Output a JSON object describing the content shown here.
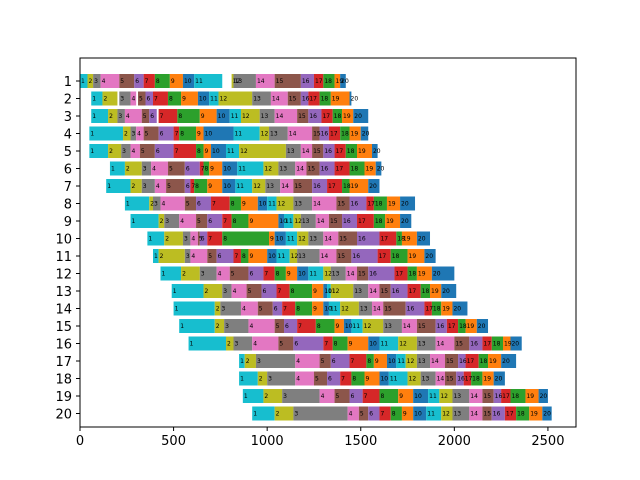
{
  "chart_data": {
    "type": "bar",
    "orientation": "horizontal-stacked",
    "title": "",
    "xlabel": "",
    "ylabel": "",
    "xlim": [
      0,
      2650
    ],
    "xticks": [
      0,
      500,
      1000,
      1500,
      2000,
      2500
    ],
    "categories": [
      "1",
      "2",
      "3",
      "4",
      "5",
      "6",
      "7",
      "8",
      "9",
      "10",
      "11",
      "12",
      "13",
      "14",
      "15",
      "16",
      "17",
      "18",
      "19",
      "20"
    ],
    "y_inverted": true,
    "grid": false,
    "legend": "none",
    "segment_labels": [
      "1",
      "2",
      "3",
      "4",
      "5",
      "6",
      "7",
      "8",
      "9",
      "10",
      "11",
      "12",
      "13",
      "14",
      "15",
      "16",
      "17",
      "18",
      "19",
      "20"
    ],
    "palette": [
      "#17becf",
      "#bcbd22",
      "#7f7f7f",
      "#e377c2",
      "#8c564b",
      "#9467bd",
      "#d62728",
      "#2ca02c",
      "#ff7f0e",
      "#1f77b4",
      "#17becf",
      "#bcbd22",
      "#7f7f7f",
      "#e377c2",
      "#8c564b",
      "#9467bd",
      "#d62728",
      "#2ca02c",
      "#ff7f0e",
      "#1f77b4"
    ],
    "rows": [
      {
        "starts": [
          0,
          40,
          70,
          110,
          210,
          290,
          340,
          400,
          480,
          550,
          610,
          810,
          820,
          940,
          1040,
          1180,
          1250,
          1300,
          1360,
          1390
        ],
        "durations": [
          40,
          30,
          40,
          100,
          80,
          50,
          60,
          80,
          70,
          60,
          150,
          10,
          120,
          100,
          140,
          70,
          50,
          60,
          30,
          30
        ]
      },
      {
        "starts": [
          60,
          120,
          210,
          270,
          310,
          350,
          390,
          470,
          540,
          630,
          690,
          740,
          920,
          1020,
          1110,
          1180,
          1220,
          1280,
          1340,
          1440
        ],
        "durations": [
          60,
          80,
          60,
          30,
          40,
          40,
          80,
          70,
          90,
          60,
          50,
          180,
          100,
          90,
          70,
          40,
          60,
          60,
          100,
          10
        ]
      },
      {
        "starts": [
          60,
          150,
          200,
          240,
          330,
          370,
          420,
          520,
          640,
          730,
          800,
          860,
          960,
          1040,
          1160,
          1220,
          1290,
          1350,
          1400,
          1460
        ],
        "durations": [
          90,
          50,
          40,
          90,
          40,
          40,
          100,
          120,
          90,
          70,
          60,
          100,
          80,
          120,
          60,
          70,
          60,
          50,
          60,
          80
        ]
      },
      {
        "starts": [
          50,
          230,
          270,
          300,
          340,
          420,
          500,
          530,
          620,
          660,
          820,
          960,
          1010,
          1110,
          1240,
          1280,
          1330,
          1390,
          1440,
          1500
        ],
        "durations": [
          180,
          40,
          30,
          40,
          80,
          80,
          30,
          90,
          40,
          160,
          140,
          50,
          100,
          130,
          40,
          50,
          60,
          50,
          60,
          40
        ]
      },
      {
        "starts": [
          50,
          150,
          220,
          270,
          320,
          400,
          500,
          620,
          660,
          700,
          780,
          850,
          1100,
          1180,
          1240,
          1300,
          1360,
          1420,
          1480,
          1560
        ],
        "durations": [
          100,
          70,
          50,
          50,
          80,
          100,
          120,
          40,
          40,
          80,
          70,
          250,
          80,
          60,
          60,
          60,
          60,
          60,
          80,
          30
        ]
      },
      {
        "starts": [
          160,
          240,
          330,
          380,
          470,
          560,
          640,
          660,
          690,
          760,
          840,
          980,
          1060,
          1150,
          1210,
          1280,
          1360,
          1440,
          1520,
          1580
        ],
        "durations": [
          80,
          90,
          50,
          90,
          90,
          80,
          20,
          30,
          70,
          80,
          140,
          80,
          90,
          60,
          70,
          80,
          80,
          80,
          60,
          30
        ]
      },
      {
        "starts": [
          140,
          270,
          330,
          400,
          460,
          560,
          590,
          610,
          680,
          760,
          830,
          920,
          990,
          1070,
          1140,
          1240,
          1320,
          1400,
          1440,
          1540
        ],
        "durations": [
          130,
          60,
          70,
          60,
          100,
          30,
          20,
          70,
          80,
          70,
          90,
          70,
          80,
          70,
          100,
          80,
          80,
          40,
          100,
          60
        ]
      },
      {
        "starts": [
          240,
          370,
          390,
          430,
          560,
          620,
          700,
          800,
          860,
          950,
          1000,
          1050,
          1140,
          1240,
          1370,
          1440,
          1530,
          1570,
          1640,
          1710
        ],
        "durations": [
          130,
          20,
          40,
          130,
          60,
          80,
          100,
          60,
          90,
          50,
          50,
          90,
          100,
          130,
          70,
          90,
          40,
          70,
          70,
          80
        ]
      },
      {
        "starts": [
          270,
          420,
          450,
          530,
          620,
          680,
          760,
          810,
          900,
          1060,
          1090,
          1140,
          1180,
          1260,
          1330,
          1400,
          1480,
          1570,
          1630,
          1710
        ],
        "durations": [
          150,
          30,
          80,
          90,
          60,
          80,
          50,
          90,
          160,
          30,
          50,
          40,
          80,
          70,
          70,
          80,
          90,
          60,
          80,
          60
        ]
      },
      {
        "starts": [
          360,
          450,
          550,
          590,
          630,
          640,
          680,
          760,
          1010,
          1040,
          1100,
          1160,
          1220,
          1300,
          1380,
          1480,
          1600,
          1690,
          1720,
          1800
        ],
        "durations": [
          90,
          100,
          40,
          40,
          10,
          40,
          80,
          250,
          30,
          60,
          60,
          60,
          80,
          80,
          100,
          120,
          90,
          30,
          80,
          70
        ]
      },
      {
        "starts": [
          390,
          420,
          560,
          590,
          680,
          730,
          820,
          860,
          900,
          1000,
          1050,
          1120,
          1160,
          1280,
          1370,
          1450,
          1590,
          1660,
          1750,
          1840
        ],
        "durations": [
          30,
          140,
          30,
          90,
          50,
          90,
          40,
          40,
          100,
          50,
          70,
          40,
          120,
          90,
          80,
          140,
          70,
          90,
          90,
          60
        ]
      },
      {
        "starts": [
          430,
          540,
          640,
          730,
          800,
          900,
          980,
          1040,
          1100,
          1160,
          1220,
          1300,
          1340,
          1420,
          1480,
          1540,
          1680,
          1750,
          1800,
          1880
        ],
        "durations": [
          110,
          100,
          90,
          70,
          100,
          80,
          60,
          60,
          60,
          60,
          80,
          40,
          80,
          60,
          60,
          140,
          70,
          50,
          80,
          120
        ]
      },
      {
        "starts": [
          490,
          660,
          760,
          810,
          890,
          970,
          1050,
          1120,
          1240,
          1300,
          1320,
          1340,
          1460,
          1540,
          1600,
          1660,
          1750,
          1820,
          1870,
          1930
        ],
        "durations": [
          170,
          100,
          50,
          80,
          80,
          80,
          70,
          120,
          60,
          20,
          20,
          120,
          80,
          60,
          60,
          90,
          70,
          50,
          60,
          80
        ]
      },
      {
        "starts": [
          500,
          720,
          750,
          860,
          950,
          1030,
          1080,
          1150,
          1240,
          1300,
          1330,
          1390,
          1490,
          1560,
          1620,
          1740,
          1840,
          1880,
          1930,
          1990
        ],
        "durations": [
          220,
          30,
          110,
          90,
          80,
          50,
          70,
          90,
          60,
          30,
          60,
          100,
          70,
          60,
          120,
          100,
          40,
          50,
          60,
          80
        ]
      },
      {
        "starts": [
          530,
          720,
          770,
          900,
          1040,
          1090,
          1160,
          1260,
          1360,
          1410,
          1450,
          1510,
          1620,
          1720,
          1800,
          1900,
          1960,
          2020,
          2060,
          2120
        ],
        "durations": [
          190,
          50,
          130,
          140,
          50,
          70,
          100,
          100,
          50,
          40,
          60,
          110,
          100,
          80,
          100,
          60,
          60,
          40,
          60,
          60
        ]
      },
      {
        "starts": [
          580,
          780,
          820,
          920,
          1060,
          1140,
          1300,
          1350,
          1430,
          1540,
          1600,
          1700,
          1800,
          1900,
          2000,
          2080,
          2150,
          2200,
          2260,
          2300
        ],
        "durations": [
          200,
          40,
          100,
          140,
          80,
          160,
          50,
          80,
          110,
          60,
          100,
          100,
          100,
          100,
          80,
          70,
          50,
          60,
          40,
          60
        ]
      },
      {
        "starts": [
          850,
          880,
          940,
          1150,
          1280,
          1340,
          1440,
          1530,
          1570,
          1640,
          1690,
          1740,
          1800,
          1870,
          1950,
          2020,
          2060,
          2130,
          2180,
          2250
        ],
        "durations": [
          30,
          60,
          210,
          130,
          60,
          100,
          90,
          40,
          70,
          50,
          50,
          60,
          70,
          80,
          70,
          40,
          70,
          50,
          70,
          80
        ]
      },
      {
        "starts": [
          850,
          950,
          1000,
          1150,
          1250,
          1320,
          1390,
          1450,
          1520,
          1600,
          1650,
          1750,
          1820,
          1900,
          1950,
          2010,
          2050,
          2090,
          2150,
          2210
        ],
        "durations": [
          100,
          50,
          150,
          100,
          70,
          70,
          60,
          70,
          80,
          50,
          100,
          70,
          80,
          50,
          60,
          40,
          40,
          60,
          60,
          60
        ]
      },
      {
        "starts": [
          870,
          980,
          1080,
          1280,
          1360,
          1440,
          1510,
          1600,
          1700,
          1780,
          1860,
          1920,
          1990,
          2080,
          2150,
          2210,
          2250,
          2300,
          2380,
          2450
        ],
        "durations": [
          110,
          100,
          200,
          80,
          80,
          70,
          90,
          100,
          80,
          80,
          60,
          70,
          90,
          70,
          60,
          40,
          50,
          80,
          70,
          50
        ]
      },
      {
        "starts": [
          920,
          1040,
          1140,
          1430,
          1490,
          1540,
          1600,
          1660,
          1720,
          1780,
          1850,
          1930,
          1990,
          2080,
          2150,
          2200,
          2270,
          2330,
          2400,
          2470
        ],
        "durations": [
          120,
          100,
          290,
          60,
          50,
          60,
          60,
          60,
          60,
          70,
          80,
          60,
          90,
          70,
          50,
          70,
          60,
          70,
          70,
          50
        ]
      }
    ]
  }
}
